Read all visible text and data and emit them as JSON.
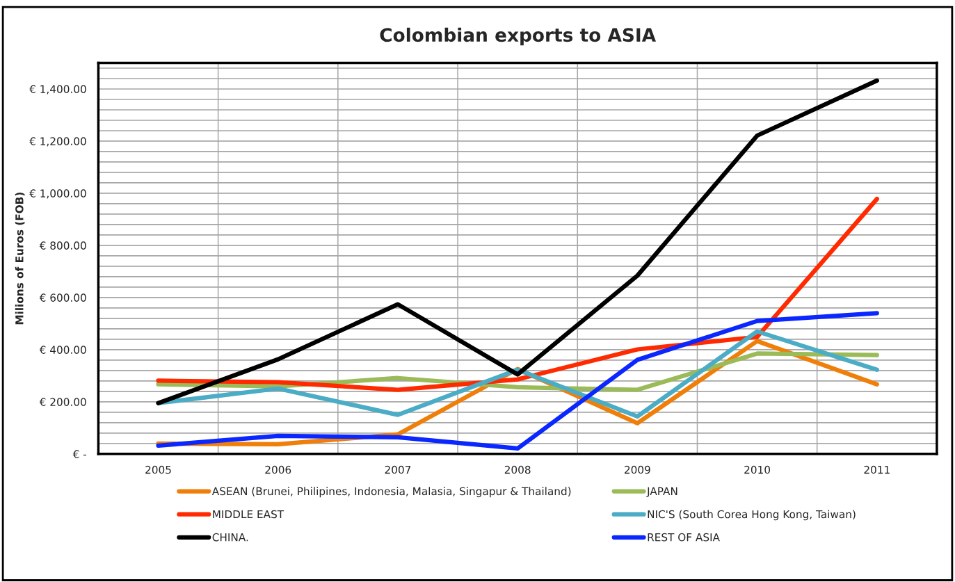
{
  "chart_data": {
    "type": "line",
    "title": "Colombian exports to ASIA",
    "ylabel": "Milions of Euros (FOB)",
    "categories": [
      "2005",
      "2006",
      "2007",
      "2008",
      "2009",
      "2010",
      "2011"
    ],
    "series": [
      {
        "name": "ASEAN (Brunei, Philipines, Indonesia, Malasia, Singapur & Thailand)",
        "color": "#f07f09",
        "values": [
          40,
          37,
          75,
          326,
          118,
          433,
          267
        ]
      },
      {
        "name": "JAPAN",
        "color": "#9bbb59",
        "values": [
          267,
          259,
          291,
          256,
          246,
          385,
          379
        ]
      },
      {
        "name": "MIDDLE EAST",
        "color": "#ff2a00",
        "values": [
          281,
          275,
          246,
          286,
          401,
          449,
          978
        ]
      },
      {
        "name": "NIC'S (South Corea Hong Kong, Taiwan)",
        "color": "#4bacc6",
        "values": [
          195,
          251,
          150,
          323,
          144,
          470,
          323
        ]
      },
      {
        "name": "CHINA.",
        "color": "#000000",
        "values": [
          195,
          363,
          574,
          305,
          684,
          1221,
          1432
        ]
      },
      {
        "name": "REST OF ASIA",
        "color": "#0a27ff",
        "values": [
          32,
          69,
          64,
          21,
          361,
          510,
          540
        ]
      }
    ],
    "ylim": [
      0,
      1500
    ],
    "yticks": [
      {
        "value": 0,
        "label": "€ -"
      },
      {
        "value": 40,
        "label": null
      },
      {
        "value": 80,
        "label": null
      },
      {
        "value": 120,
        "label": null
      },
      {
        "value": 160,
        "label": null
      },
      {
        "value": 200,
        "label": "€ 200.00"
      },
      {
        "value": 240,
        "label": null
      },
      {
        "value": 280,
        "label": null
      },
      {
        "value": 320,
        "label": null
      },
      {
        "value": 360,
        "label": null
      },
      {
        "value": 400,
        "label": "€ 400.00"
      },
      {
        "value": 440,
        "label": null
      },
      {
        "value": 480,
        "label": null
      },
      {
        "value": 520,
        "label": null
      },
      {
        "value": 560,
        "label": null
      },
      {
        "value": 600,
        "label": "€ 600.00"
      },
      {
        "value": 640,
        "label": null
      },
      {
        "value": 680,
        "label": null
      },
      {
        "value": 720,
        "label": null
      },
      {
        "value": 760,
        "label": null
      },
      {
        "value": 800,
        "label": "€ 800.00"
      },
      {
        "value": 840,
        "label": null
      },
      {
        "value": 880,
        "label": null
      },
      {
        "value": 920,
        "label": null
      },
      {
        "value": 960,
        "label": null
      },
      {
        "value": 1000,
        "label": "€ 1,000.00"
      },
      {
        "value": 1040,
        "label": null
      },
      {
        "value": 1080,
        "label": null
      },
      {
        "value": 1120,
        "label": null
      },
      {
        "value": 1160,
        "label": null
      },
      {
        "value": 1200,
        "label": "€ 1,200.00"
      },
      {
        "value": 1240,
        "label": null
      },
      {
        "value": 1280,
        "label": null
      },
      {
        "value": 1320,
        "label": null
      },
      {
        "value": 1360,
        "label": null
      },
      {
        "value": 1400,
        "label": "€ 1,400.00"
      },
      {
        "value": 1440,
        "label": null
      },
      {
        "value": 1480,
        "label": null
      }
    ],
    "grid": true,
    "legend": "bottom",
    "marker": "none",
    "line_style": "solid"
  }
}
